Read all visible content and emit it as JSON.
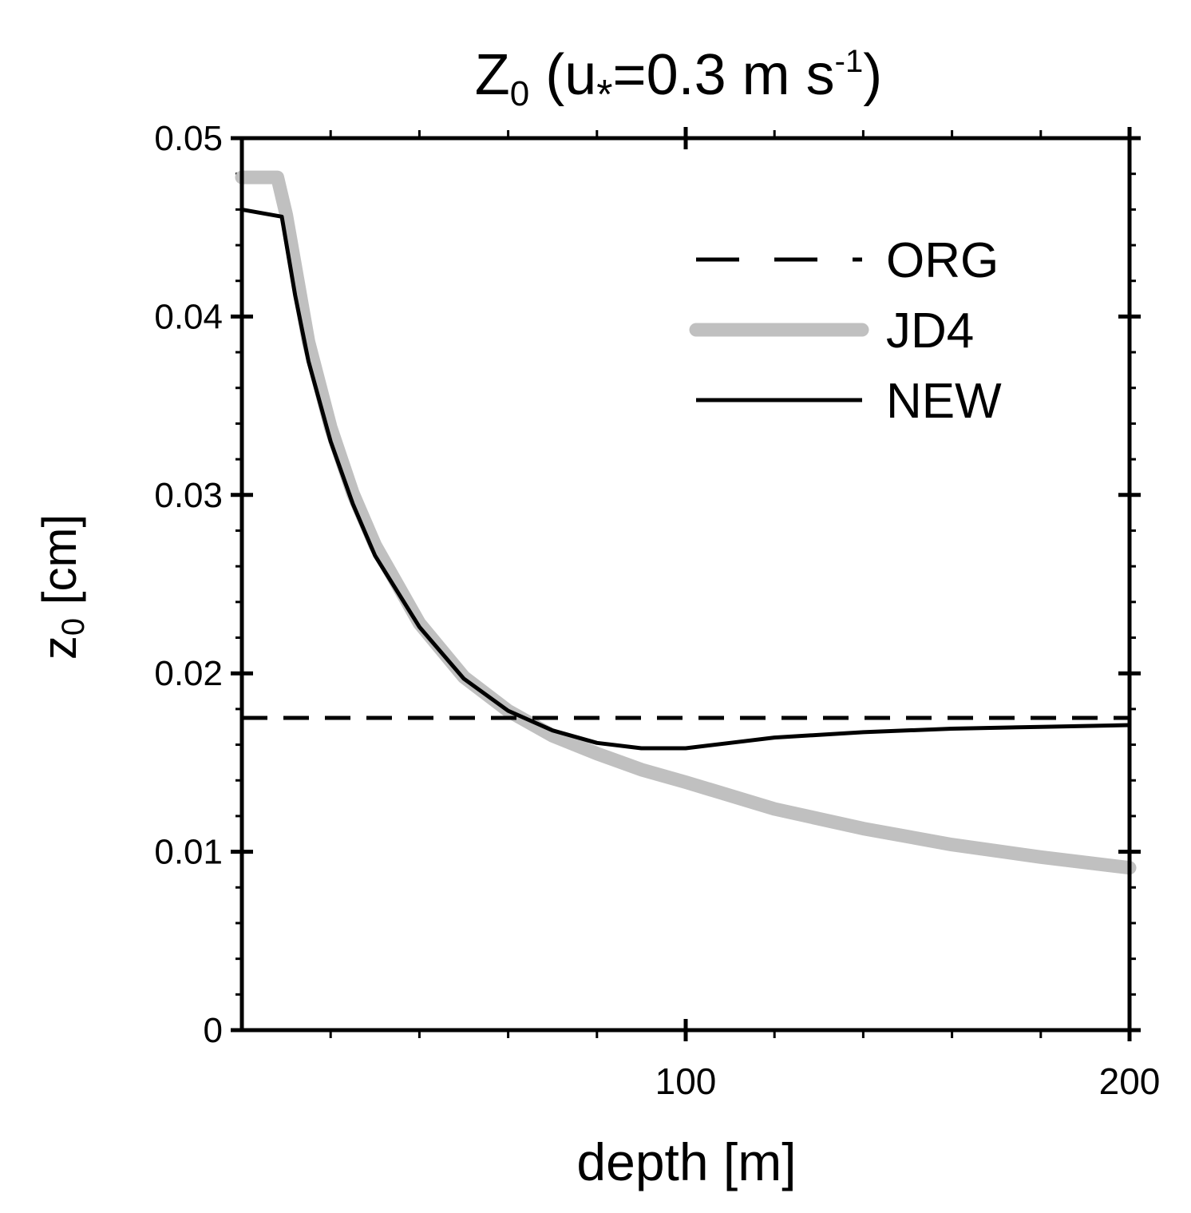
{
  "chart_data": {
    "type": "line",
    "title": {
      "main": "Z",
      "main_sub": "0",
      "paren_open": "(u",
      "u_sub": "*",
      "value_text": "=0.3 m s",
      "value_sup": "-1",
      "paren_close": ")"
    },
    "xlabel": "depth [m]",
    "ylabel": {
      "main": "z",
      "sub": "0",
      "rest": " [cm]"
    },
    "xlim": [
      0,
      200
    ],
    "ylim": [
      0,
      0.05
    ],
    "x_ticks": [
      100,
      200
    ],
    "x_tick_labels": [
      "100",
      "200"
    ],
    "x_minor_ticks": [
      20,
      40,
      60,
      80,
      120,
      140,
      160,
      180
    ],
    "y_ticks": [
      0,
      0.01,
      0.02,
      0.03,
      0.04,
      0.05
    ],
    "y_tick_labels": [
      "0",
      "0.01",
      "0.02",
      "0.03",
      "0.04",
      "0.05"
    ],
    "y_minor_step": 0.002,
    "grid": false,
    "legend_location": "top-right",
    "series": [
      {
        "name": "ORG",
        "style": "dashed",
        "color": "#000000",
        "x": [
          0,
          200
        ],
        "y": [
          0.0175,
          0.0175
        ]
      },
      {
        "name": "JD4",
        "style": "thick",
        "color": "#c0c0c0",
        "x": [
          0,
          8,
          10,
          15,
          20,
          25,
          30,
          40,
          50,
          60,
          70,
          80,
          90,
          100,
          120,
          140,
          160,
          180,
          200
        ],
        "y": [
          0.0478,
          0.0478,
          0.0457,
          0.0386,
          0.0338,
          0.0301,
          0.0272,
          0.0228,
          0.0198,
          0.0179,
          0.0165,
          0.0155,
          0.0146,
          0.0139,
          0.0124,
          0.0113,
          0.0104,
          0.0097,
          0.0091
        ]
      },
      {
        "name": "NEW",
        "style": "solid",
        "color": "#000000",
        "x": [
          0,
          9,
          12,
          15,
          20,
          25,
          30,
          40,
          50,
          60,
          70,
          80,
          90,
          95,
          100,
          110,
          120,
          140,
          160,
          180,
          200
        ],
        "y": [
          0.046,
          0.0456,
          0.0412,
          0.0375,
          0.033,
          0.0295,
          0.0266,
          0.0226,
          0.0197,
          0.0179,
          0.0168,
          0.0161,
          0.0158,
          0.0158,
          0.0158,
          0.0161,
          0.0164,
          0.0167,
          0.0169,
          0.017,
          0.0171
        ]
      }
    ]
  }
}
